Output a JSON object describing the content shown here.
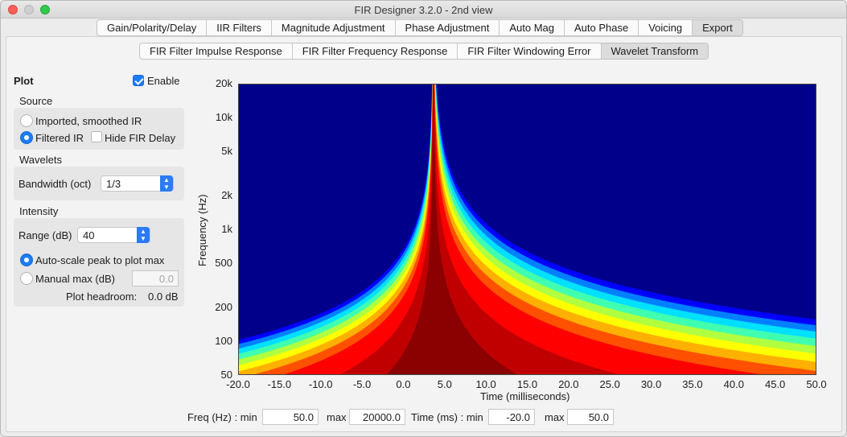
{
  "window": {
    "title": "FIR Designer 3.2.0 - 2nd view"
  },
  "main_tabs": [
    "Gain/Polarity/Delay",
    "IIR Filters",
    "Magnitude Adjustment",
    "Phase Adjustment",
    "Auto Mag",
    "Auto Phase",
    "Voicing",
    "Export"
  ],
  "main_tab_selected": "Export",
  "sub_tabs": [
    "FIR Filter Impulse Response",
    "FIR Filter Frequency Response",
    "FIR Filter Windowing Error",
    "Wavelet Transform"
  ],
  "sub_tab_selected": "Wavelet Transform",
  "sidebar": {
    "plot_label": "Plot",
    "enable_label": "Enable",
    "enable_checked": true,
    "source_label": "Source",
    "source_options": [
      "Imported, smoothed IR",
      "Filtered IR"
    ],
    "source_selected": "Filtered IR",
    "hide_fir_delay_label": "Hide FIR Delay",
    "hide_fir_delay_checked": false,
    "wavelets_label": "Wavelets",
    "bandwidth_label": "Bandwidth (oct)",
    "bandwidth_value": "1/3",
    "intensity_label": "Intensity",
    "range_label": "Range (dB)",
    "range_value": "40",
    "autoscale_label": "Auto-scale peak to plot max",
    "manual_label": "Manual max (dB)",
    "manual_value": "0.0",
    "scale_selected": "Auto-scale peak to plot max",
    "headroom_label": "Plot headroom:",
    "headroom_value": "0.0 dB"
  },
  "bottom_bar": {
    "freq_label": "Freq (Hz) : min",
    "freq_min": "50.0",
    "max_label": "max",
    "freq_max": "20000.0",
    "time_label": "Time (ms) : min",
    "time_min": "-20.0",
    "time_max_label": "max",
    "time_max": "50.0"
  },
  "chart_data": {
    "type": "heatmap",
    "title": "",
    "xlabel": "Time (milliseconds)",
    "ylabel": "Frequency (Hz)",
    "xlim": [
      -20.0,
      50.0
    ],
    "ylim": [
      50,
      20000
    ],
    "y_scale": "log",
    "x_ticks": [
      "-20.0",
      "-15.0",
      "-10.0",
      "-5.0",
      "0.0",
      "5.0",
      "10.0",
      "15.0",
      "20.0",
      "25.0",
      "30.0",
      "35.0",
      "40.0",
      "45.0",
      "50.0"
    ],
    "x_tick_values": [
      -20,
      -15,
      -10,
      -5,
      0,
      5,
      10,
      15,
      20,
      25,
      30,
      35,
      40,
      45,
      50
    ],
    "y_ticks": [
      "20k",
      "10k",
      "5k",
      "2k",
      "1k",
      "500",
      "200",
      "100",
      "50"
    ],
    "y_tick_values": [
      20000,
      10000,
      5000,
      2000,
      1000,
      500,
      200,
      100,
      50
    ],
    "peak_time_ms": 3.6,
    "colormap": "jet",
    "background_color": "#00008b",
    "peak_color": "#8b0000"
  }
}
